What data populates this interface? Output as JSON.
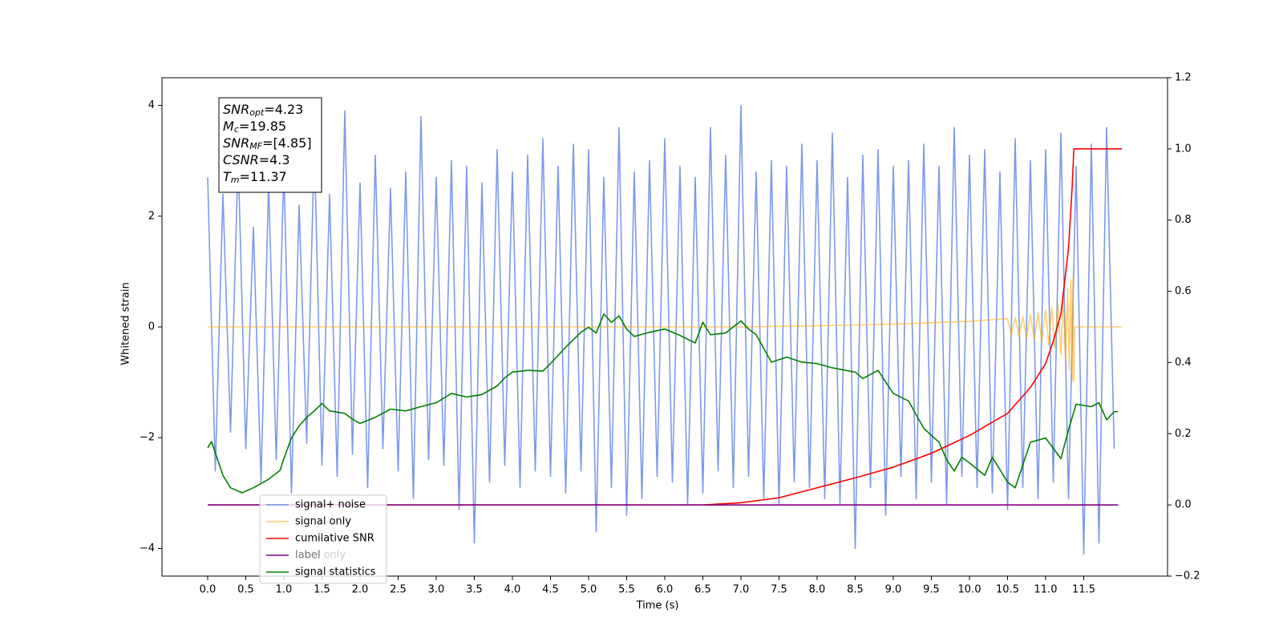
{
  "chart_data": {
    "type": "line",
    "xlabel": "Time (s)",
    "ylabel": "Whitened strain",
    "xlim": [
      -0.6,
      12.6
    ],
    "ylim": [
      -4.5,
      4.5
    ],
    "y2lim": [
      -0.2,
      1.2
    ],
    "xticks": [
      {
        "value": 0,
        "label": "0.0"
      },
      {
        "value": 0.5,
        "label": "0.5"
      },
      {
        "value": 1,
        "label": "1.0"
      },
      {
        "value": 1.5,
        "label": "1.5"
      },
      {
        "value": 2,
        "label": "2.0"
      },
      {
        "value": 2.5,
        "label": "2.5"
      },
      {
        "value": 3,
        "label": "3.0"
      },
      {
        "value": 3.5,
        "label": "3.5"
      },
      {
        "value": 4,
        "label": "4.0"
      },
      {
        "value": 4.5,
        "label": "4.5"
      },
      {
        "value": 5,
        "label": "5.0"
      },
      {
        "value": 5.5,
        "label": "5.5"
      },
      {
        "value": 6,
        "label": "6.0"
      },
      {
        "value": 6.5,
        "label": "6.5"
      },
      {
        "value": 7,
        "label": "7.0"
      },
      {
        "value": 7.5,
        "label": "7.5"
      },
      {
        "value": 8,
        "label": "8.0"
      },
      {
        "value": 8.5,
        "label": "8.5"
      },
      {
        "value": 9,
        "label": "9.0"
      },
      {
        "value": 9.5,
        "label": "9.5"
      },
      {
        "value": 10,
        "label": "10.0"
      },
      {
        "value": 10.5,
        "label": "10.5"
      },
      {
        "value": 11,
        "label": "11.0"
      },
      {
        "value": 11.5,
        "label": "11.5"
      }
    ],
    "yticks": [
      {
        "value": -4,
        "label": "−4"
      },
      {
        "value": -2,
        "label": "−2"
      },
      0,
      2,
      4
    ],
    "y2ticks": [
      {
        "value": -0.2,
        "label": "−0.2"
      },
      {
        "value": 0,
        "label": "0.0"
      },
      0.2,
      0.4,
      0.6,
      0.8,
      {
        "value": 1,
        "label": "1.0"
      },
      1.2
    ],
    "info_box": [
      {
        "symbol": "SNR",
        "sub": "opt",
        "text": "=4.23"
      },
      {
        "symbol": "M",
        "sub": "c",
        "text": "=19.85"
      },
      {
        "symbol": "SNR",
        "sub": "MF",
        "text": "=[4.85]"
      },
      {
        "symbol": "CSNR",
        "sub": "",
        "text": "=4.3"
      },
      {
        "symbol": "T",
        "sub": "m",
        "text": "=11.37"
      }
    ],
    "legend_overlay_text": "label only",
    "series": [
      {
        "name": "signal+ noise",
        "color": "#6f8ee8",
        "axis": "y",
        "x": [
          0,
          0.1,
          0.2,
          0.3,
          0.4,
          0.5,
          0.6,
          0.7,
          0.8,
          0.9,
          1,
          1.1,
          1.2,
          1.3,
          1.4,
          1.5,
          1.6,
          1.7,
          1.8,
          1.9,
          2,
          2.1,
          2.2,
          2.3,
          2.4,
          2.5,
          2.6,
          2.7,
          2.8,
          2.9,
          3,
          3.1,
          3.2,
          3.3,
          3.4,
          3.5,
          3.6,
          3.7,
          3.8,
          3.9,
          4,
          4.1,
          4.2,
          4.3,
          4.4,
          4.5,
          4.6,
          4.7,
          4.8,
          4.9,
          5,
          5.1,
          5.2,
          5.3,
          5.4,
          5.5,
          5.6,
          5.7,
          5.8,
          5.9,
          6,
          6.1,
          6.2,
          6.3,
          6.4,
          6.5,
          6.6,
          6.7,
          6.8,
          6.9,
          7,
          7.1,
          7.2,
          7.3,
          7.4,
          7.5,
          7.6,
          7.7,
          7.8,
          7.9,
          8,
          8.1,
          8.2,
          8.3,
          8.4,
          8.5,
          8.6,
          8.7,
          8.8,
          8.9,
          9,
          9.1,
          9.2,
          9.3,
          9.4,
          9.5,
          9.6,
          9.7,
          9.8,
          9.9,
          10,
          10.1,
          10.2,
          10.3,
          10.4,
          10.5,
          10.6,
          10.7,
          10.8,
          10.9,
          11,
          11.1,
          11.2,
          11.3,
          11.4,
          11.5,
          11.6,
          11.7,
          11.8,
          11.9
        ],
        "values": [
          2.7,
          -2.6,
          2.4,
          -1.9,
          3.1,
          -2.2,
          1.8,
          -2.8,
          2.6,
          -2.4,
          2.9,
          -3.0,
          2.2,
          -2.1,
          3.3,
          -2.5,
          2.4,
          -2.7,
          3.9,
          -2.3,
          2.6,
          -2.9,
          3.1,
          -2.2,
          2.5,
          -2.6,
          2.8,
          -3.1,
          3.8,
          -2.4,
          2.7,
          -2.5,
          3.0,
          -3.3,
          2.9,
          -3.9,
          2.6,
          -2.8,
          3.2,
          -2.5,
          2.8,
          -2.9,
          3.1,
          -2.6,
          3.4,
          -2.7,
          2.9,
          -3.0,
          3.3,
          -2.6,
          3.2,
          -3.7,
          2.7,
          -2.9,
          3.6,
          -3.4,
          2.8,
          -3.1,
          3.0,
          -2.7,
          3.4,
          -2.8,
          2.9,
          -3.2,
          2.7,
          -3.0,
          3.6,
          -2.6,
          3.1,
          -2.9,
          4.0,
          -2.7,
          2.8,
          -3.1,
          3.0,
          -3.2,
          2.9,
          -2.8,
          3.3,
          -2.9,
          3.0,
          -3.1,
          3.5,
          -3.2,
          2.7,
          -4.0,
          3.1,
          -2.9,
          3.2,
          -3.4,
          2.9,
          -2.7,
          3.0,
          -3.1,
          3.3,
          -2.8,
          2.9,
          -3.2,
          3.6,
          -2.7,
          3.1,
          -2.9,
          3.2,
          -3.0,
          2.8,
          -3.3,
          3.4,
          -2.9,
          3.0,
          -3.1,
          3.2,
          -2.8,
          3.5,
          -3.1,
          2.9,
          -4.1,
          3.3,
          -3.9,
          3.6,
          -2.2
        ]
      },
      {
        "name": "signal only",
        "color": "#ffa500",
        "axis": "y",
        "x": [
          0,
          7.0,
          8.0,
          9.0,
          10.0,
          10.5,
          10.55,
          10.6,
          10.65,
          10.7,
          10.75,
          10.8,
          10.85,
          10.9,
          10.95,
          11.0,
          11.04,
          11.08,
          11.12,
          11.16,
          11.2,
          11.23,
          11.26,
          11.29,
          11.31,
          11.33,
          11.35,
          11.36,
          11.37,
          11.38,
          12.0
        ],
        "values": [
          0,
          0,
          0.02,
          0.05,
          0.1,
          0.15,
          -0.15,
          0.17,
          -0.17,
          0.19,
          -0.2,
          0.22,
          -0.23,
          0.25,
          -0.27,
          0.3,
          -0.32,
          0.35,
          -0.38,
          0.42,
          -0.5,
          0.55,
          -0.6,
          0.7,
          -0.78,
          0.85,
          -0.95,
          0.9,
          -1.0,
          0,
          0
        ]
      },
      {
        "name": "cumilative SNR",
        "color": "#ff0000",
        "axis": "y2",
        "x": [
          0,
          6.5,
          7.0,
          7.5,
          8.0,
          8.5,
          9.0,
          9.5,
          10.0,
          10.5,
          10.8,
          11.0,
          11.1,
          11.2,
          11.3,
          11.35,
          11.37,
          12.0
        ],
        "values": [
          0,
          0,
          0.006,
          0.02,
          0.048,
          0.076,
          0.106,
          0.145,
          0.195,
          0.257,
          0.33,
          0.397,
          0.46,
          0.536,
          0.72,
          0.9,
          1.0,
          1.0
        ]
      },
      {
        "name": "label",
        "color": "#800080",
        "axis": "y2",
        "x": [
          0,
          11.95
        ],
        "values": [
          0,
          0
        ]
      },
      {
        "name": "signal statistics",
        "color": "#008000",
        "axis": "y2",
        "x": [
          0,
          0.05,
          0.2,
          0.3,
          0.45,
          0.6,
          0.8,
          0.95,
          1.0,
          1.1,
          1.2,
          1.3,
          1.4,
          1.5,
          1.6,
          1.8,
          1.9,
          2.0,
          2.2,
          2.4,
          2.6,
          2.8,
          3.0,
          3.2,
          3.4,
          3.6,
          3.8,
          3.9,
          4.0,
          4.2,
          4.4,
          4.5,
          4.7,
          4.9,
          5.0,
          5.1,
          5.2,
          5.3,
          5.4,
          5.5,
          5.6,
          5.8,
          6.0,
          6.2,
          6.4,
          6.5,
          6.6,
          6.8,
          7.0,
          7.1,
          7.2,
          7.4,
          7.6,
          7.8,
          8.0,
          8.2,
          8.5,
          8.6,
          8.8,
          9.0,
          9.2,
          9.4,
          9.6,
          9.7,
          9.8,
          9.9,
          10.0,
          10.2,
          10.3,
          10.5,
          10.6,
          10.8,
          11.0,
          11.2,
          11.3,
          11.4,
          11.6,
          11.7,
          11.8,
          11.9,
          11.95
        ],
        "values": [
          0.16,
          0.178,
          0.083,
          0.048,
          0.034,
          0.048,
          0.072,
          0.097,
          0.13,
          0.188,
          0.222,
          0.246,
          0.264,
          0.285,
          0.264,
          0.257,
          0.241,
          0.229,
          0.246,
          0.269,
          0.264,
          0.276,
          0.287,
          0.313,
          0.303,
          0.31,
          0.334,
          0.357,
          0.373,
          0.378,
          0.376,
          0.397,
          0.443,
          0.485,
          0.499,
          0.483,
          0.536,
          0.513,
          0.531,
          0.494,
          0.473,
          0.485,
          0.494,
          0.476,
          0.455,
          0.513,
          0.478,
          0.483,
          0.517,
          0.494,
          0.478,
          0.401,
          0.415,
          0.401,
          0.397,
          0.385,
          0.373,
          0.355,
          0.378,
          0.313,
          0.292,
          0.215,
          0.176,
          0.127,
          0.095,
          0.134,
          0.118,
          0.083,
          0.134,
          0.064,
          0.048,
          0.176,
          0.188,
          0.13,
          0.211,
          0.283,
          0.276,
          0.287,
          0.239,
          0.262,
          0.262
        ]
      }
    ]
  }
}
